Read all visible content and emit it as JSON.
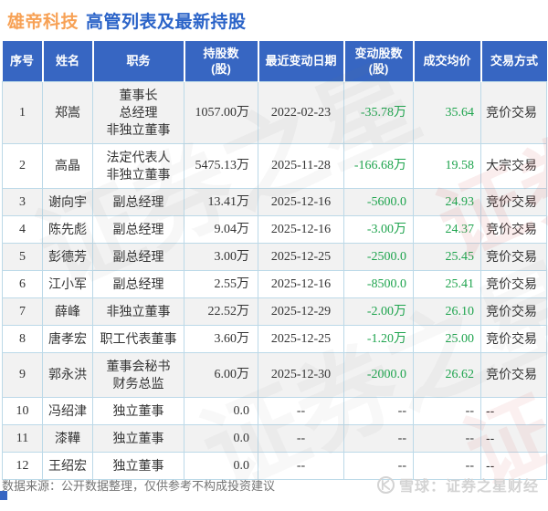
{
  "title": {
    "stock": "雄帝科技",
    "subtitle": "高管列表及最新持股"
  },
  "colors": {
    "stock_orange": "#f7a155",
    "title_blue": "#2a63c8",
    "header_bg": "#3766c2",
    "value_green": "#1fa44e",
    "row_alt_gray": "#f2f2f2",
    "grid_blue": "#bcd9e8"
  },
  "table": {
    "headers": [
      {
        "line1": "序号",
        "line2": ""
      },
      {
        "line1": "姓名",
        "line2": ""
      },
      {
        "line1": "职务",
        "line2": ""
      },
      {
        "line1": "持股数",
        "line2": "(股)"
      },
      {
        "line1": "最近变动日期",
        "line2": ""
      },
      {
        "line1": "变动股数",
        "line2": "(股)"
      },
      {
        "line1": "成交均价",
        "line2": ""
      },
      {
        "line1": "交易方式",
        "line2": ""
      }
    ],
    "rows": [
      {
        "seq": "1",
        "name": "郑嵩",
        "position": [
          "董事长",
          "总经理",
          "非独立董事"
        ],
        "holdings": "1057.00万",
        "date": "2022-02-23",
        "change": "-35.78万",
        "price": "35.64",
        "method": "竞价交易"
      },
      {
        "seq": "2",
        "name": "高晶",
        "position": [
          "法定代表人",
          "非独立董事"
        ],
        "holdings": "5475.13万",
        "date": "2025-11-28",
        "change": "-166.68万",
        "price": "19.58",
        "method": "大宗交易"
      },
      {
        "seq": "3",
        "name": "谢向宇",
        "position": [
          "副总经理"
        ],
        "holdings": "13.41万",
        "date": "2025-12-16",
        "change": "-5600.0",
        "price": "24.93",
        "method": "竞价交易"
      },
      {
        "seq": "4",
        "name": "陈先彪",
        "position": [
          "副总经理"
        ],
        "holdings": "9.04万",
        "date": "2025-12-16",
        "change": "-3.00万",
        "price": "24.37",
        "method": "竞价交易"
      },
      {
        "seq": "5",
        "name": "彭德芳",
        "position": [
          "副总经理"
        ],
        "holdings": "3.00万",
        "date": "2025-12-25",
        "change": "-2500.0",
        "price": "25.45",
        "method": "竞价交易"
      },
      {
        "seq": "6",
        "name": "江小军",
        "position": [
          "副总经理"
        ],
        "holdings": "2.55万",
        "date": "2025-12-16",
        "change": "-8500.0",
        "price": "25.41",
        "method": "竞价交易"
      },
      {
        "seq": "7",
        "name": "薛峰",
        "position": [
          "非独立董事"
        ],
        "holdings": "22.52万",
        "date": "2025-12-29",
        "change": "-2.00万",
        "price": "26.10",
        "method": "竞价交易"
      },
      {
        "seq": "8",
        "name": "唐孝宏",
        "position": [
          "职工代表董事"
        ],
        "holdings": "3.60万",
        "date": "2025-12-25",
        "change": "-1.20万",
        "price": "25.00",
        "method": "竞价交易"
      },
      {
        "seq": "9",
        "name": "郭永洪",
        "position": [
          "董事会秘书",
          "财务总监"
        ],
        "holdings": "6.00万",
        "date": "2025-12-30",
        "change": "-2000.0",
        "price": "26.62",
        "method": "竞价交易"
      },
      {
        "seq": "10",
        "name": "冯绍津",
        "position": [
          "独立董事"
        ],
        "holdings": "0.0",
        "date": "--",
        "change": "--",
        "price": "--",
        "method": "--"
      },
      {
        "seq": "11",
        "name": "漆鞾",
        "position": [
          "独立董事"
        ],
        "holdings": "0.0",
        "date": "--",
        "change": "--",
        "price": "--",
        "method": "--"
      },
      {
        "seq": "12",
        "name": "王绍宏",
        "position": [
          "独立董事"
        ],
        "holdings": "0.0",
        "date": "--",
        "change": "--",
        "price": "--",
        "method": "--"
      }
    ]
  },
  "footer": {
    "source_note": "数据来源：公开数据整理，仅供参考不构成投资建议",
    "brand": "雪球：证券之星财经",
    "brand_icon": "xueqiu-snowball-logo"
  },
  "watermark": {
    "text": "证券之星"
  }
}
